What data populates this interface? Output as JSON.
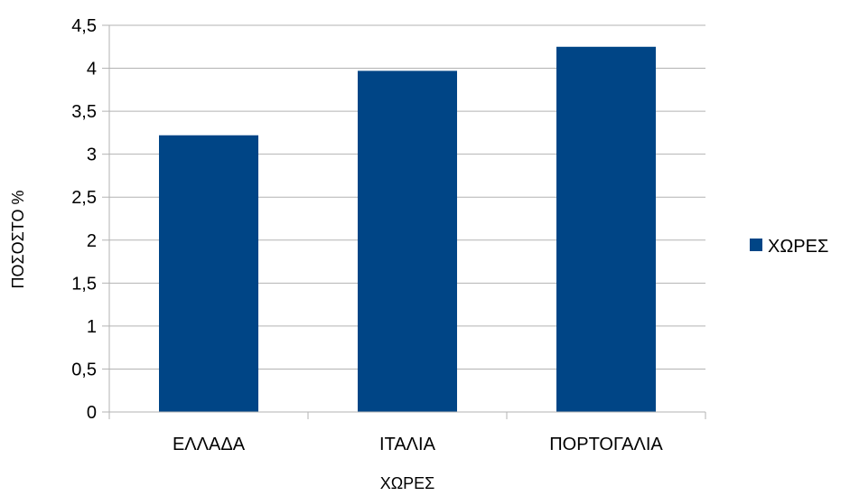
{
  "chart_data": {
    "type": "bar",
    "title": "",
    "xlabel": "ΧΩΡΕΣ",
    "ylabel": "ΠΟΣΟΣΤΟ %",
    "categories": [
      "ΕΛΛΑΔΑ",
      "ΙΤΑΛΙΑ",
      "ΠΟΡΤΟΓΑΛΙΑ"
    ],
    "series": [
      {
        "name": "ΧΩΡΕΣ",
        "values": [
          3.22,
          3.97,
          4.25
        ],
        "color": "#004586"
      }
    ],
    "ylim": [
      0,
      4.5
    ],
    "yticks": [
      0,
      0.5,
      1,
      1.5,
      2,
      2.5,
      3,
      3.5,
      4,
      4.5
    ],
    "ytick_labels": [
      "0",
      "0,5",
      "1",
      "1,5",
      "2",
      "2,5",
      "3",
      "3,5",
      "4",
      "4,5"
    ],
    "grid": true,
    "legend_position": "right"
  }
}
